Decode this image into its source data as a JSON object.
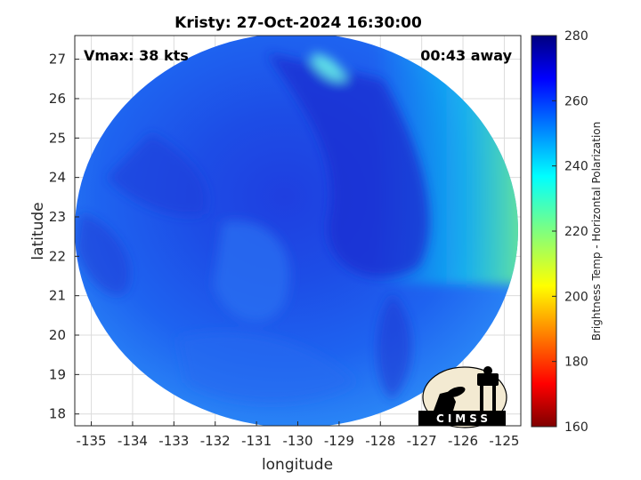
{
  "chart_data": {
    "type": "heatmap",
    "title": "Kristy: 27-Oct-2024 16:30:00",
    "xlabel": "longitude",
    "ylabel": "latitude",
    "x_ticks": [
      -135,
      -134,
      -133,
      -132,
      -131,
      -130,
      -129,
      -128,
      -127,
      -126,
      -125
    ],
    "y_ticks": [
      18,
      19,
      20,
      21,
      22,
      23,
      24,
      25,
      26,
      27
    ],
    "xlim": [
      -135.4,
      -124.6
    ],
    "ylim": [
      17.7,
      27.6
    ],
    "grid": true,
    "annotations": {
      "vmax": "Vmax: 38 kts",
      "time_away": "00:43 away"
    },
    "colorbar": {
      "label": "Brightness Temp - Horizontal Polarization",
      "ticks": [
        160,
        180,
        200,
        220,
        240,
        260,
        280
      ],
      "range": [
        160,
        280
      ],
      "colormap": "jet",
      "colors": [
        "#7f0000",
        "#ff0000",
        "#ffff00",
        "#7fff7f",
        "#00ffff",
        "#0000ff",
        "#00007f"
      ]
    },
    "field_summary": {
      "valid_region": "circular swath",
      "typical_value": 258,
      "warm_cool_notes": "colder (lighter) edge toward east-northeast near 238 K"
    }
  },
  "logo": {
    "name": "CIMSS"
  }
}
